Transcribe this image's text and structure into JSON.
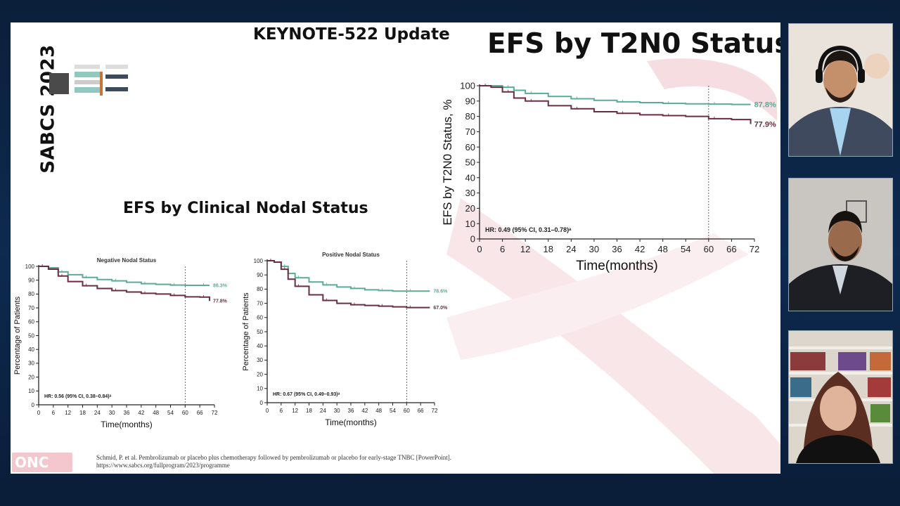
{
  "slide": {
    "side_label": "SABCS 2023",
    "header": "KEYNOTE-522 Update",
    "main_title": "EFS by T2N0 Status",
    "sub_title": "EFS by Clinical Nodal Status",
    "citation_line1": "Schmid, P. et al. Pembrolizumab or placebo plus chemotherapy followed by pembrolizumab or placebo for early-stage TNBC [PowerPoint].",
    "citation_line2": "https://www.sabcs.org/fullprogram/2023/programme",
    "logo_text": "ONC"
  },
  "colors": {
    "pembro": "#5aab98",
    "placebo": "#6b2d3f",
    "ribbon": "#f6dde1"
  },
  "chart_data": [
    {
      "type": "line",
      "title": "",
      "xlabel": "Time(months)",
      "ylabel": "EFS by T2N0 Status, %",
      "xlim": [
        0,
        72
      ],
      "ylim": [
        0,
        100
      ],
      "xticks": [
        0,
        6,
        12,
        18,
        24,
        30,
        36,
        42,
        48,
        54,
        60,
        66,
        72
      ],
      "yticks": [
        0,
        10,
        20,
        30,
        40,
        50,
        60,
        70,
        80,
        90,
        100
      ],
      "annotation": "HR: 0.49 (95% CI, 0.31–0.78)ᵃ",
      "vline": 60,
      "series": [
        {
          "label": "87.8%",
          "color": "#5aab98",
          "x": [
            0,
            3,
            6,
            9,
            12,
            18,
            24,
            30,
            36,
            42,
            48,
            54,
            60,
            66,
            71
          ],
          "y": [
            100,
            100,
            99,
            97,
            95,
            93,
            91.5,
            90.5,
            89.5,
            89,
            88.5,
            88.2,
            88,
            87.8,
            87.8
          ]
        },
        {
          "label": "77.9%",
          "color": "#6b2d3f",
          "x": [
            0,
            3,
            6,
            9,
            12,
            18,
            24,
            30,
            36,
            42,
            48,
            54,
            60,
            66,
            71
          ],
          "y": [
            100,
            99,
            96,
            92,
            90,
            87,
            85,
            83,
            82,
            81,
            80.5,
            80,
            78.5,
            77.9,
            75
          ]
        }
      ]
    },
    {
      "type": "line",
      "title": "Negative Nodal Status",
      "xlabel": "Time(months)",
      "ylabel": "Percentage of Patients",
      "xlim": [
        0,
        72
      ],
      "ylim": [
        0,
        100
      ],
      "xticks": [
        0,
        6,
        12,
        18,
        24,
        30,
        36,
        42,
        48,
        54,
        60,
        66,
        72
      ],
      "yticks": [
        0,
        10,
        20,
        30,
        40,
        50,
        60,
        70,
        80,
        90,
        100
      ],
      "annotation": "HR: 0.56 (95% CI, 0.38–0.84)ᵃ",
      "vline": 60,
      "series": [
        {
          "label": "86.3%",
          "color": "#5aab98",
          "x": [
            0,
            4,
            8,
            12,
            18,
            24,
            30,
            36,
            42,
            48,
            54,
            60,
            66,
            70
          ],
          "y": [
            100,
            99,
            96,
            94,
            92,
            90.5,
            89.5,
            88.5,
            87.5,
            87,
            86.5,
            86.3,
            86.3,
            86.3
          ]
        },
        {
          "label": "77.8%",
          "color": "#6b2d3f",
          "x": [
            0,
            4,
            8,
            12,
            18,
            24,
            30,
            36,
            42,
            48,
            54,
            60,
            66,
            70
          ],
          "y": [
            100,
            98,
            93,
            89,
            86,
            84,
            82.5,
            81.5,
            80.5,
            80,
            79,
            78,
            77.8,
            75
          ]
        }
      ]
    },
    {
      "type": "line",
      "title": "Positive Nodal Status",
      "xlabel": "Time(months)",
      "ylabel": "Percentage of Patients",
      "xlim": [
        0,
        72
      ],
      "ylim": [
        0,
        100
      ],
      "xticks": [
        0,
        6,
        12,
        18,
        24,
        30,
        36,
        42,
        48,
        54,
        60,
        66,
        72
      ],
      "yticks": [
        0,
        10,
        20,
        30,
        40,
        50,
        60,
        70,
        80,
        90,
        100
      ],
      "annotation": "HR: 0.67 (95% CI, 0.49–0.93)ᵃ",
      "vline": 60,
      "series": [
        {
          "label": "78.6%",
          "color": "#5aab98",
          "x": [
            0,
            3,
            6,
            9,
            12,
            18,
            24,
            30,
            36,
            42,
            48,
            54,
            60,
            66,
            70
          ],
          "y": [
            100,
            99,
            96,
            91,
            88,
            85,
            83,
            81.5,
            80.5,
            79.5,
            79,
            78.6,
            78.6,
            78.6,
            78.6
          ]
        },
        {
          "label": "67.0%",
          "color": "#6b2d3f",
          "x": [
            0,
            3,
            6,
            9,
            12,
            18,
            24,
            30,
            36,
            42,
            48,
            54,
            60,
            66,
            70
          ],
          "y": [
            100,
            99,
            94,
            87,
            82,
            76,
            72,
            70,
            69,
            68.5,
            68,
            67.5,
            67,
            67,
            67
          ]
        }
      ]
    }
  ]
}
